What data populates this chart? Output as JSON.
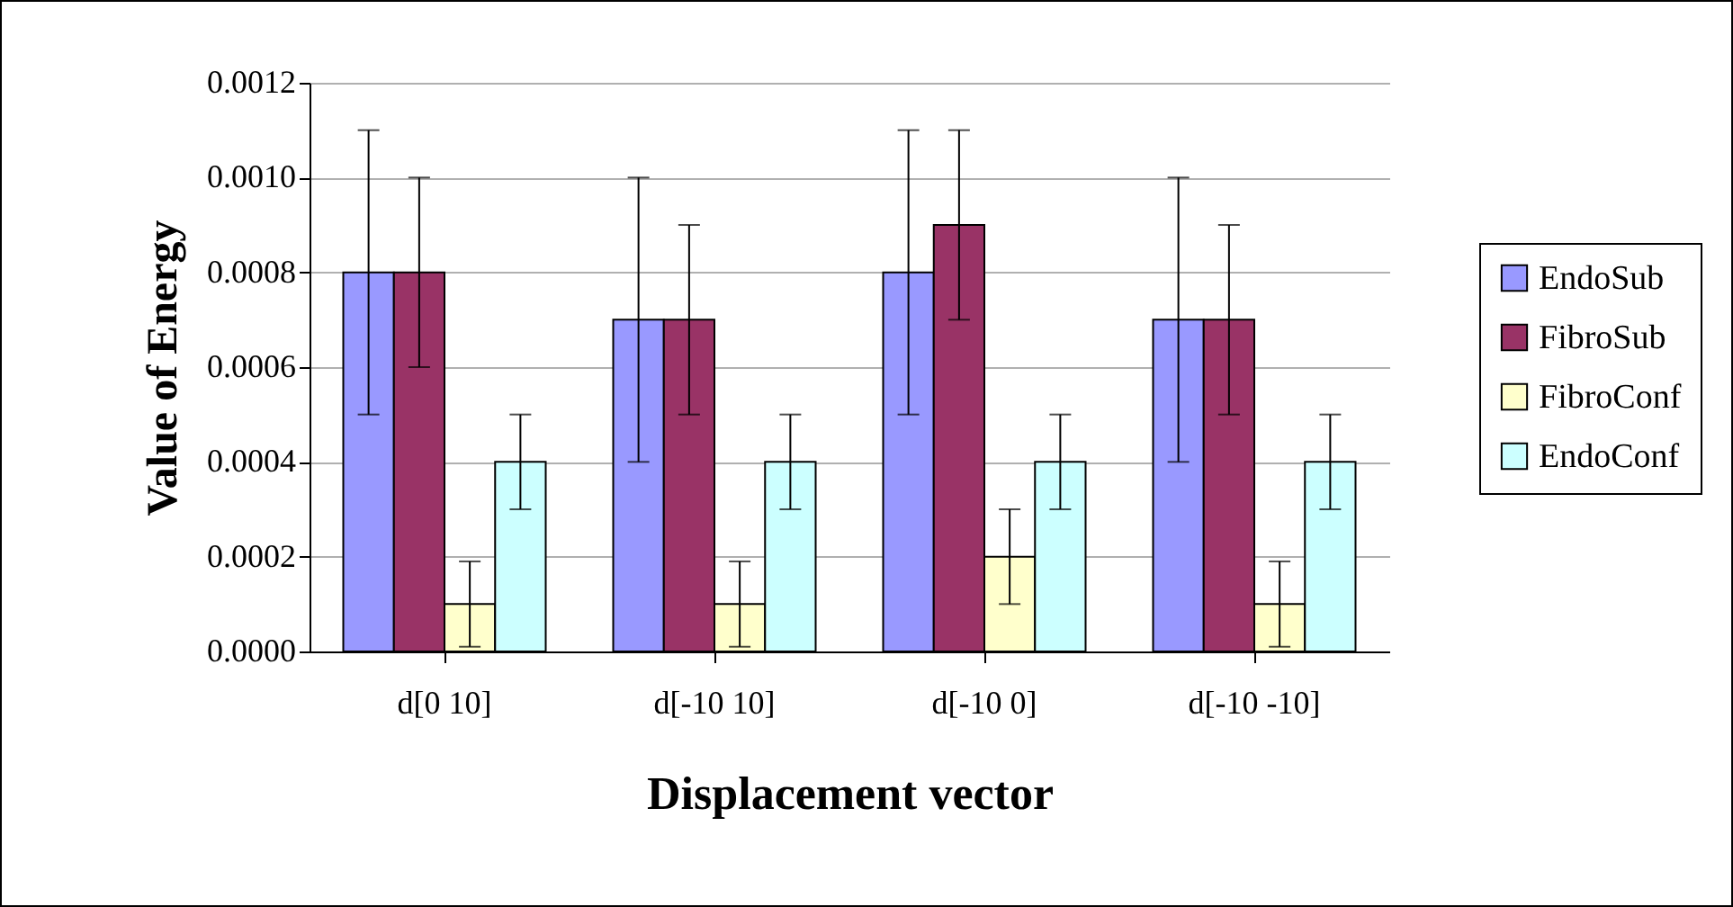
{
  "chart_data": {
    "type": "bar",
    "xlabel": "Displacement vector",
    "ylabel": "Value of Energy",
    "categories": [
      "d[0 10]",
      "d[-10 10]",
      "d[-10 0]",
      "d[-10 -10]"
    ],
    "series": [
      {
        "name": "EndoSub",
        "color": "#9999ff",
        "values": [
          0.0008,
          0.0007,
          0.0008,
          0.0007
        ],
        "errors": [
          0.0003,
          0.0003,
          0.0003,
          0.0003
        ]
      },
      {
        "name": "FibroSub",
        "color": "#993366",
        "values": [
          0.0008,
          0.0007,
          0.0009,
          0.0007
        ],
        "errors": [
          0.0002,
          0.0002,
          0.0002,
          0.0002
        ]
      },
      {
        "name": "FibroConf",
        "color": "#ffffcc",
        "values": [
          0.0001,
          0.0001,
          0.0002,
          0.0001
        ],
        "errors": [
          9e-05,
          9e-05,
          0.0001,
          9e-05
        ]
      },
      {
        "name": "EndoConf",
        "color": "#ccffff",
        "values": [
          0.0004,
          0.0004,
          0.0004,
          0.0004
        ],
        "errors": [
          0.0001,
          0.0001,
          0.0001,
          0.0001
        ]
      }
    ],
    "ylim": [
      0,
      0.0012
    ],
    "yticks": [
      {
        "value": 0,
        "label": "0.0000"
      },
      {
        "value": 0.0002,
        "label": "0.0002"
      },
      {
        "value": 0.0004,
        "label": "0.0004"
      },
      {
        "value": 0.0006,
        "label": "0.0006"
      },
      {
        "value": 0.0008,
        "label": "0.0008"
      },
      {
        "value": 0.001,
        "label": "0.0010"
      },
      {
        "value": 0.0012,
        "label": "0.0012"
      }
    ],
    "grid": "y",
    "legend": "right"
  }
}
